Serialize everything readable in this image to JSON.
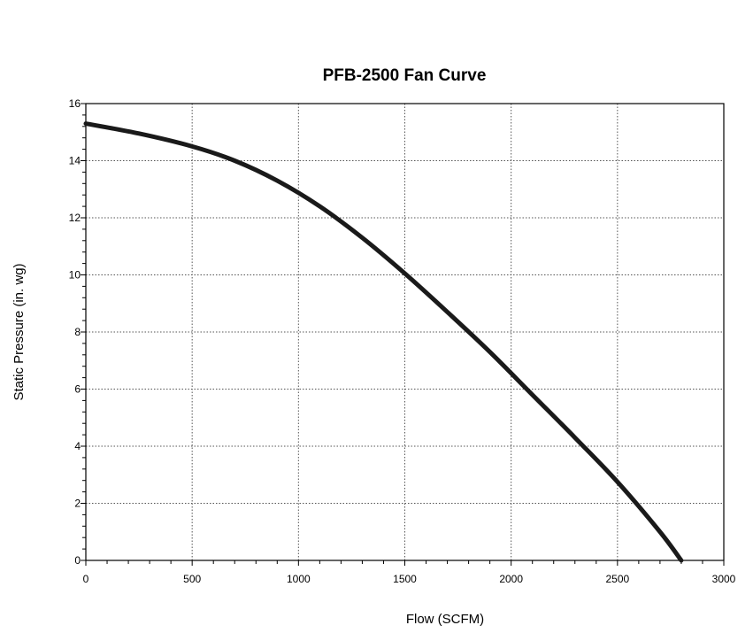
{
  "chart_data": {
    "type": "line",
    "title": "PFB-2500 Fan Curve",
    "xlabel": "Flow (SCFM)",
    "ylabel": "Static Pressure (in. wg)",
    "xlim": [
      0,
      3000
    ],
    "ylim": [
      0,
      16
    ],
    "x_ticks": [
      "0",
      "500",
      "1000",
      "1500",
      "2000",
      "2500",
      "3000"
    ],
    "y_ticks": [
      "0",
      "2",
      "4",
      "6",
      "8",
      "10",
      "12",
      "14",
      "16"
    ],
    "grid": true,
    "series": [
      {
        "x": [
          0,
          250,
          500,
          700,
          900,
          1100,
          1300,
          1500,
          1700,
          1900,
          2100,
          2300,
          2500,
          2700,
          2800
        ],
        "y": [
          15.3,
          14.95,
          14.5,
          14.0,
          13.3,
          12.4,
          11.3,
          10.05,
          8.7,
          7.3,
          5.8,
          4.3,
          2.75,
          1.0,
          0.0
        ]
      }
    ]
  }
}
